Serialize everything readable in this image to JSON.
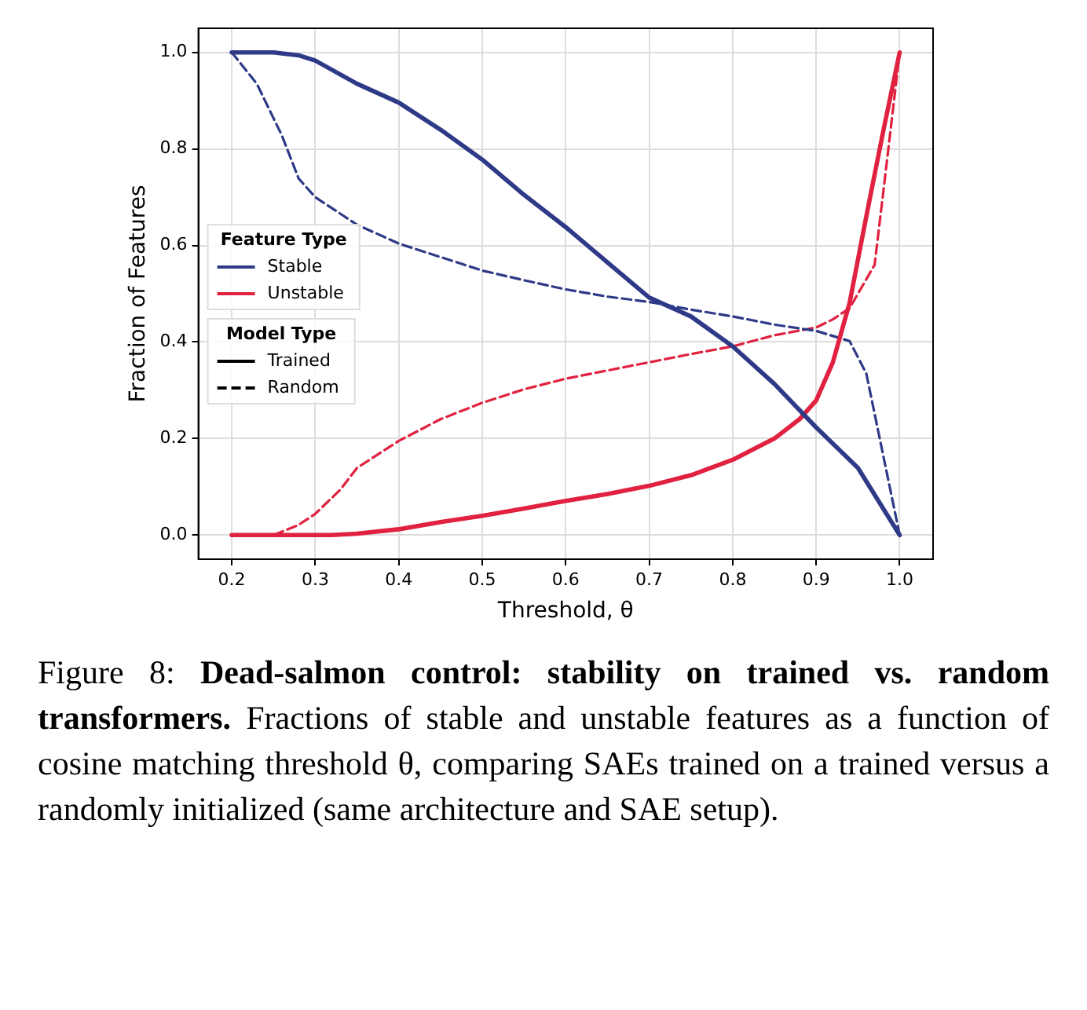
{
  "chart_data": {
    "type": "line",
    "xlabel": "Threshold, θ",
    "ylabel": "Fraction of Features",
    "legend_title": "Feature Type",
    "legend": "center left",
    "grid": true,
    "xlim": [
      0.16,
      1.04
    ],
    "ylim": [
      -0.05,
      1.05
    ],
    "xticks": [
      0.2,
      0.3,
      0.4,
      0.5,
      0.6,
      0.7,
      0.8,
      0.9,
      {
        "value": 1,
        "label": "1.0"
      }
    ],
    "yticks": [
      {
        "value": 0,
        "label": "0.0"
      },
      0.2,
      0.4,
      0.6,
      0.8,
      {
        "value": 1,
        "label": "1.0"
      }
    ],
    "series": [
      {
        "name": "Stable",
        "color": "#2e3a87",
        "line_style": "solid",
        "x": [
          0.2,
          0.25,
          0.28,
          0.3,
          0.35,
          0.4,
          0.45,
          0.5,
          0.55,
          0.6,
          0.65,
          0.7,
          0.75,
          0.8,
          0.85,
          0.9,
          0.95,
          1.0
        ],
        "values": [
          1.0,
          1.0,
          0.994,
          0.983,
          0.935,
          0.896,
          0.84,
          0.778,
          0.705,
          0.638,
          0.565,
          0.492,
          0.453,
          0.391,
          0.313,
          0.223,
          0.139,
          0.0
        ]
      },
      {
        "name": "Unstable",
        "color": "#e0213f",
        "line_style": "solid",
        "x": [
          0.2,
          0.25,
          0.3,
          0.32,
          0.35,
          0.4,
          0.45,
          0.5,
          0.55,
          0.6,
          0.65,
          0.7,
          0.75,
          0.8,
          0.85,
          0.88,
          0.9,
          0.92,
          0.94,
          0.96,
          0.98,
          1.0
        ],
        "values": [
          0.0,
          0.0,
          0.0,
          0.0,
          0.003,
          0.012,
          0.027,
          0.04,
          0.055,
          0.071,
          0.085,
          0.102,
          0.124,
          0.156,
          0.2,
          0.24,
          0.279,
          0.358,
          0.481,
          0.66,
          0.834,
          1.0
        ]
      },
      {
        "color": "#2e3a87",
        "line_style": "dashed",
        "x": [
          0.2,
          0.23,
          0.26,
          0.28,
          0.3,
          0.35,
          0.4,
          0.45,
          0.5,
          0.55,
          0.6,
          0.65,
          0.7,
          0.75,
          0.8,
          0.85,
          0.9,
          0.94,
          0.96,
          1.0
        ],
        "values": [
          1.0,
          0.935,
          0.828,
          0.739,
          0.7,
          0.643,
          0.604,
          0.576,
          0.548,
          0.528,
          0.509,
          0.494,
          0.483,
          0.467,
          0.453,
          0.436,
          0.423,
          0.402,
          0.335,
          0.0
        ]
      },
      {
        "color": "#e0213f",
        "line_style": "dashed",
        "x": [
          0.2,
          0.25,
          0.28,
          0.3,
          0.33,
          0.35,
          0.4,
          0.45,
          0.5,
          0.55,
          0.6,
          0.65,
          0.7,
          0.75,
          0.8,
          0.85,
          0.9,
          0.92,
          0.94,
          0.97,
          0.98,
          1.0
        ],
        "values": [
          0.0,
          0.0,
          0.021,
          0.044,
          0.094,
          0.139,
          0.195,
          0.24,
          0.274,
          0.302,
          0.324,
          0.341,
          0.358,
          0.375,
          0.391,
          0.414,
          0.43,
          0.447,
          0.47,
          0.56,
          0.705,
          1.0
        ]
      }
    ],
    "annotations": [
      "Model Type",
      "Trained",
      "Random",
      "Figure 8:",
      "Dead-salmon control: stability on trained vs. random transformers.",
      "Fractions of stable and unstable features as a function of cosine matching threshold θ, comparing SAEs trained on a trained versus a randomly initialized (same architecture and SAE setup)."
    ]
  }
}
